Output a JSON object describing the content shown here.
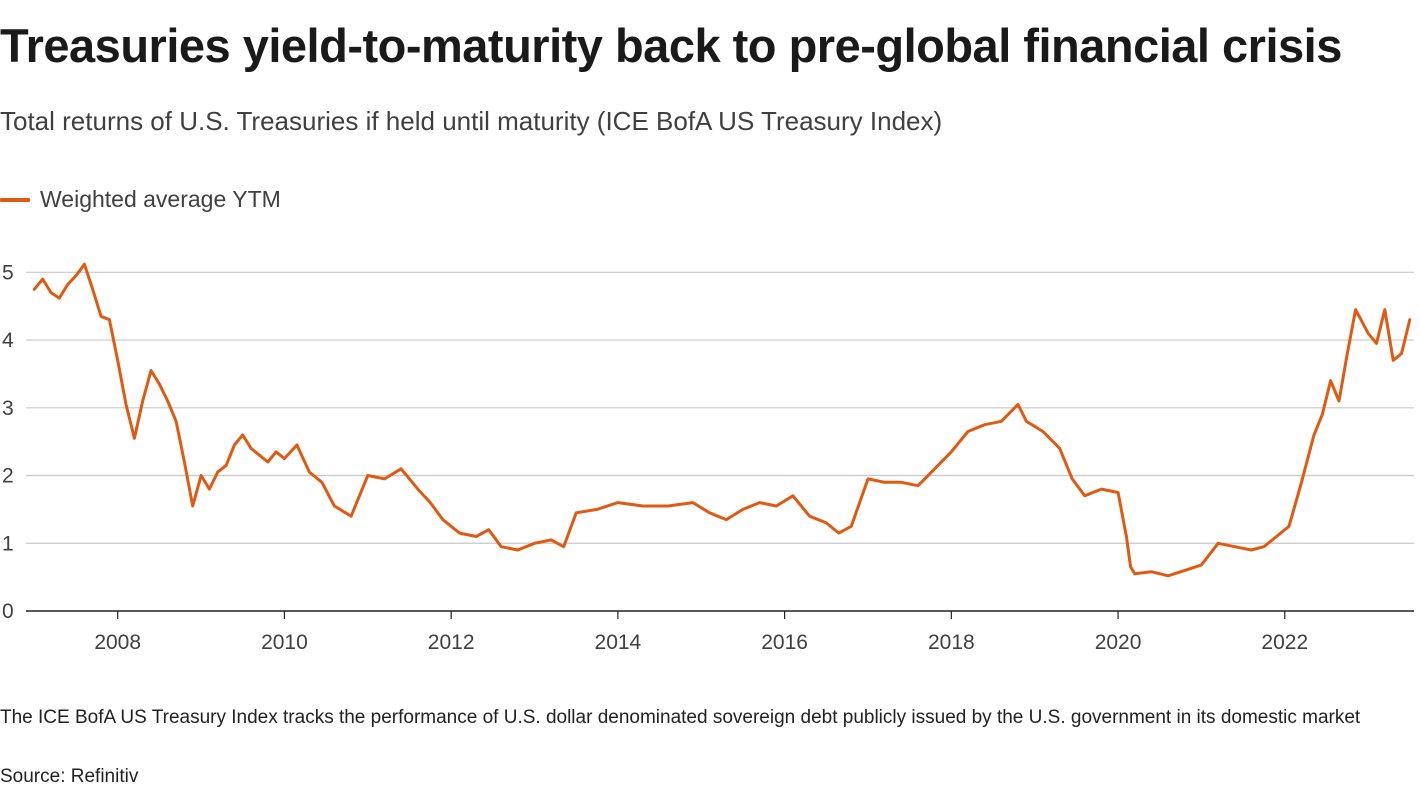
{
  "title": "Treasuries yield-to-maturity back to pre-global financial crisis",
  "subtitle": "Total returns of U.S. Treasuries if held until maturity (ICE BofA US Treasury Index)",
  "footnote": "The ICE BofA US Treasury Index tracks the performance of U.S. dollar denominated sovereign debt publicly issued by the U.S. government in its domestic market",
  "source": "Source: Refinitiv",
  "colors": {
    "series": "#e05a12",
    "grid": "#c8c8c8",
    "axis": "#222222"
  },
  "chart_data": {
    "type": "line",
    "legend_position": "top-left",
    "grid": true,
    "xlim": [
      2006.9,
      2023.55
    ],
    "ylim": [
      0,
      5.3
    ],
    "x_ticks": [
      2008,
      2010,
      2012,
      2014,
      2016,
      2018,
      2020,
      2022
    ],
    "x_tick_labels": [
      "2008",
      "2010",
      "2012",
      "2014",
      "2016",
      "2018",
      "2020",
      "2022"
    ],
    "y_ticks": [
      0,
      1,
      2,
      3,
      4,
      5
    ],
    "y_tick_labels": [
      "0",
      "1",
      "2",
      "3",
      "4",
      "5"
    ],
    "series": [
      {
        "name": "Weighted average YTM",
        "x": [
          2007.0,
          2007.1,
          2007.2,
          2007.3,
          2007.4,
          2007.5,
          2007.6,
          2007.7,
          2007.8,
          2007.9,
          2008.0,
          2008.1,
          2008.2,
          2008.3,
          2008.4,
          2008.5,
          2008.6,
          2008.7,
          2008.8,
          2008.9,
          2009.0,
          2009.1,
          2009.2,
          2009.3,
          2009.4,
          2009.5,
          2009.6,
          2009.7,
          2009.8,
          2009.9,
          2010.0,
          2010.15,
          2010.3,
          2010.45,
          2010.6,
          2010.8,
          2011.0,
          2011.2,
          2011.4,
          2011.6,
          2011.75,
          2011.9,
          2012.1,
          2012.3,
          2012.45,
          2012.6,
          2012.8,
          2013.0,
          2013.2,
          2013.35,
          2013.5,
          2013.75,
          2014.0,
          2014.3,
          2014.6,
          2014.9,
          2015.1,
          2015.3,
          2015.5,
          2015.7,
          2015.9,
          2016.1,
          2016.3,
          2016.5,
          2016.65,
          2016.8,
          2016.9,
          2017.0,
          2017.2,
          2017.4,
          2017.6,
          2017.8,
          2018.0,
          2018.2,
          2018.4,
          2018.6,
          2018.8,
          2018.9,
          2019.1,
          2019.3,
          2019.45,
          2019.6,
          2019.8,
          2020.0,
          2020.1,
          2020.15,
          2020.2,
          2020.4,
          2020.6,
          2020.8,
          2021.0,
          2021.2,
          2021.4,
          2021.6,
          2021.75,
          2021.9,
          2022.05,
          2022.2,
          2022.35,
          2022.45,
          2022.55,
          2022.65,
          2022.75,
          2022.85,
          2023.0,
          2023.1,
          2023.2,
          2023.3,
          2023.4,
          2023.5
        ],
        "y": [
          4.75,
          4.9,
          4.7,
          4.62,
          4.82,
          4.95,
          5.12,
          4.75,
          4.35,
          4.3,
          3.7,
          3.05,
          2.55,
          3.1,
          3.55,
          3.35,
          3.1,
          2.8,
          2.2,
          1.55,
          2.0,
          1.8,
          2.05,
          2.15,
          2.45,
          2.6,
          2.4,
          2.3,
          2.2,
          2.35,
          2.25,
          2.45,
          2.05,
          1.9,
          1.55,
          1.4,
          2.0,
          1.95,
          2.1,
          1.8,
          1.6,
          1.35,
          1.15,
          1.1,
          1.2,
          0.95,
          0.9,
          1.0,
          1.05,
          0.95,
          1.45,
          1.5,
          1.6,
          1.55,
          1.55,
          1.6,
          1.45,
          1.35,
          1.5,
          1.6,
          1.55,
          1.7,
          1.4,
          1.3,
          1.15,
          1.25,
          1.6,
          1.95,
          1.9,
          1.9,
          1.85,
          2.1,
          2.35,
          2.65,
          2.75,
          2.8,
          3.05,
          2.8,
          2.65,
          2.4,
          1.95,
          1.7,
          1.8,
          1.75,
          1.1,
          0.65,
          0.55,
          0.58,
          0.52,
          0.6,
          0.68,
          1.0,
          0.95,
          0.9,
          0.95,
          1.1,
          1.25,
          1.9,
          2.6,
          2.9,
          3.4,
          3.1,
          3.8,
          4.45,
          4.1,
          3.95,
          4.45,
          3.7,
          3.8,
          4.3
        ]
      }
    ]
  }
}
